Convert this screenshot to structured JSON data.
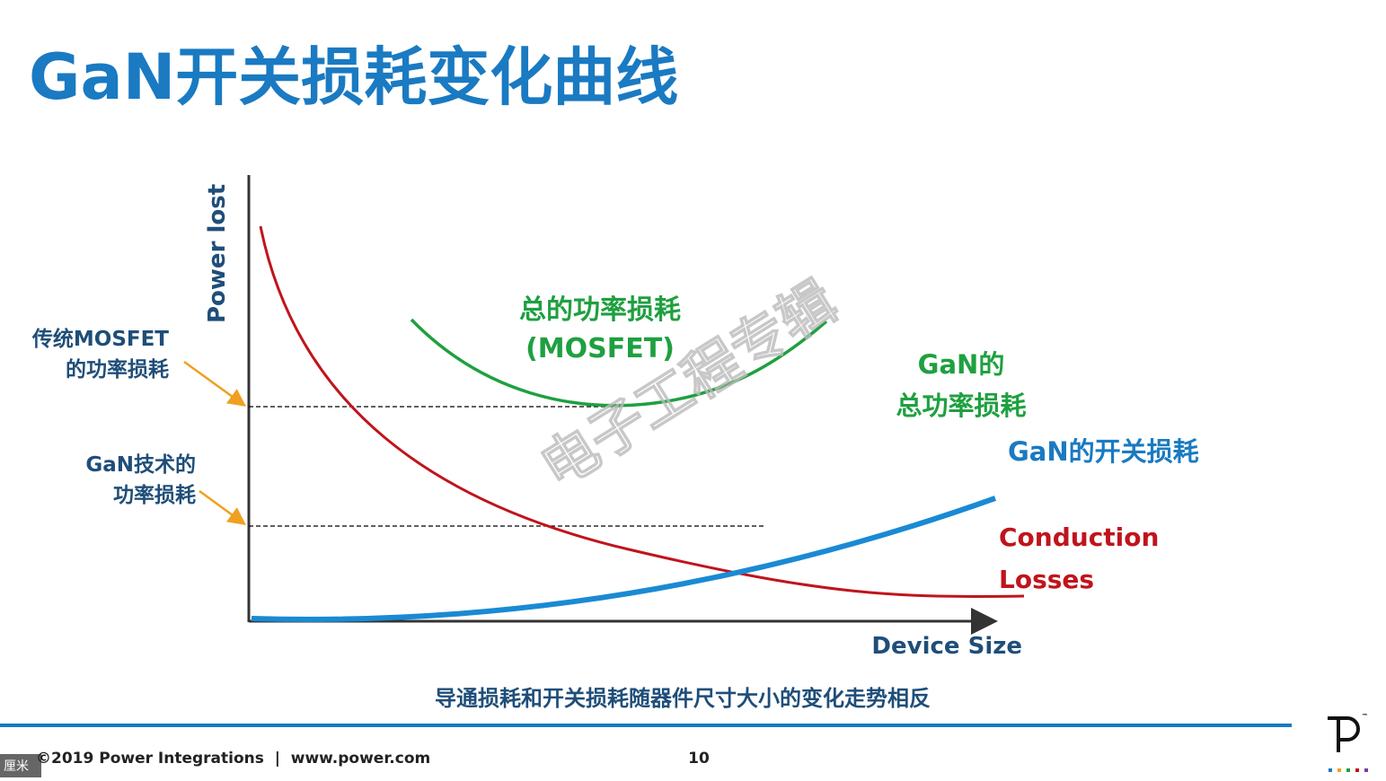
{
  "header": {
    "title": "GaN开关损耗变化曲线"
  },
  "diagram": {
    "y_axis_label": "Power lost",
    "x_axis_label": "Device Size",
    "mosfet_level_label": [
      "传统MOSFET",
      "的功率损耗"
    ],
    "gan_level_label": [
      "GaN技术的",
      "功率损耗"
    ],
    "total_mosfet_label": [
      "总的功率损耗",
      "(MOSFET)"
    ],
    "total_gan_label": [
      "GaN的",
      "总功率损耗"
    ],
    "gan_switching_label": "GaN的开关损耗",
    "conduction_label": [
      "Conduction",
      "Losses"
    ],
    "watermark": "电子工程专辑"
  },
  "caption": "导通损耗和开关损耗随器件尺寸大小的变化走势相反",
  "footer": {
    "copyright": "©2019 Power Integrations  |  www.power.com",
    "page": "10",
    "unit_tag": "厘米",
    "trademark": "™"
  }
}
